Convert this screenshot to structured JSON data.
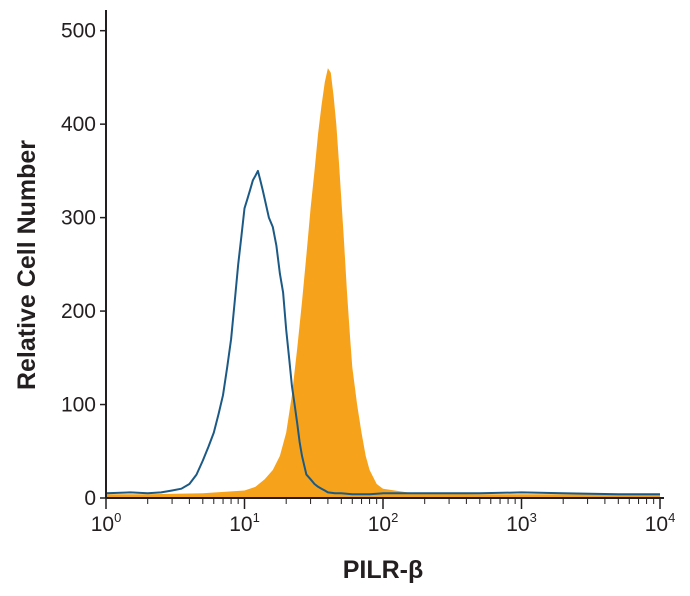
{
  "chart_data": {
    "type": "area",
    "title": "",
    "xlabel": "PILR-β",
    "ylabel": "Relative Cell Number",
    "x_scale": "log",
    "xlim": [
      1,
      10000
    ],
    "ylim": [
      0,
      520
    ],
    "x_ticks": [
      {
        "value": 1,
        "base": "10",
        "exp": "0"
      },
      {
        "value": 10,
        "base": "10",
        "exp": "1"
      },
      {
        "value": 100,
        "base": "10",
        "exp": "2"
      },
      {
        "value": 1000,
        "base": "10",
        "exp": "3"
      },
      {
        "value": 10000,
        "base": "10",
        "exp": "4"
      }
    ],
    "y_ticks": [
      {
        "value": 0,
        "label": "0"
      },
      {
        "value": 100,
        "label": "100"
      },
      {
        "value": 200,
        "label": "200"
      },
      {
        "value": 300,
        "label": "300"
      },
      {
        "value": 400,
        "label": "400"
      },
      {
        "value": 500,
        "label": "500"
      }
    ],
    "legend": "none",
    "grid": false,
    "series": [
      {
        "style": "outline",
        "color": "#1c5a85",
        "x": [
          1,
          1.5,
          2,
          2.5,
          3,
          3.5,
          4,
          4.5,
          5,
          5.5,
          6,
          6.5,
          7,
          7.5,
          8,
          8.5,
          9,
          9.5,
          10,
          10.5,
          11,
          11.5,
          12,
          12.5,
          13,
          13.5,
          14,
          15,
          16,
          17,
          18,
          19,
          20,
          21,
          22,
          23,
          24,
          25,
          26,
          27,
          28,
          30,
          32,
          34,
          36,
          38,
          40,
          45,
          50,
          60,
          70,
          80,
          100,
          150,
          200,
          500,
          1000,
          2000,
          5000,
          10000
        ],
        "y": [
          5,
          6,
          5,
          6,
          8,
          10,
          15,
          25,
          40,
          55,
          70,
          90,
          110,
          140,
          170,
          210,
          250,
          280,
          310,
          320,
          330,
          340,
          345,
          350,
          340,
          330,
          320,
          300,
          290,
          270,
          240,
          220,
          180,
          150,
          120,
          100,
          80,
          60,
          45,
          35,
          25,
          20,
          15,
          12,
          10,
          8,
          6,
          5,
          5,
          4,
          4,
          4,
          5,
          5,
          5,
          5,
          6,
          5,
          4,
          4
        ]
      },
      {
        "style": "filled",
        "color": "#f7a21b",
        "x": [
          1,
          2,
          5,
          10,
          12,
          14,
          16,
          18,
          20,
          22,
          24,
          26,
          28,
          30,
          32,
          34,
          36,
          38,
          40,
          42,
          44,
          46,
          48,
          50,
          52,
          55,
          58,
          60,
          65,
          70,
          75,
          80,
          90,
          100,
          150,
          200,
          500,
          1000,
          2000,
          5000,
          10000
        ],
        "y": [
          4,
          4,
          5,
          8,
          12,
          20,
          30,
          45,
          70,
          110,
          160,
          210,
          260,
          310,
          350,
          390,
          420,
          445,
          460,
          455,
          430,
          400,
          360,
          320,
          280,
          220,
          170,
          140,
          100,
          70,
          45,
          30,
          15,
          10,
          6,
          5,
          4,
          4,
          4,
          4,
          4
        ]
      }
    ]
  }
}
